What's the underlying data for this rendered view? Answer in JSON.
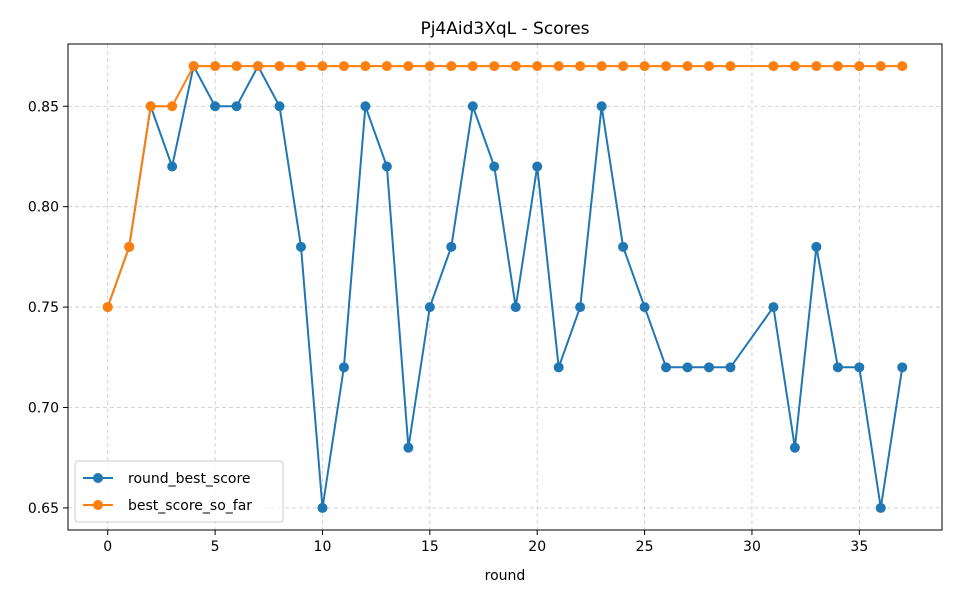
{
  "chart_data": {
    "type": "line",
    "title": "Pj4Aid3XqL - Scores",
    "xlabel": "round",
    "ylabel": "",
    "xlim": [
      -1.85,
      38.85
    ],
    "ylim": [
      0.639,
      0.881
    ],
    "xticks": [
      0,
      5,
      10,
      15,
      20,
      25,
      30,
      35
    ],
    "yticks": [
      0.65,
      0.7,
      0.75,
      0.8,
      0.85
    ],
    "ytick_labels": [
      "0.65",
      "0.70",
      "0.75",
      "0.80",
      "0.85"
    ],
    "grid": true,
    "legend_position": "lower-left",
    "series": [
      {
        "name": "round_best_score",
        "color": "#1f77b4",
        "x": [
          0,
          1,
          2,
          3,
          4,
          5,
          6,
          7,
          8,
          9,
          10,
          11,
          12,
          13,
          14,
          15,
          16,
          17,
          18,
          19,
          20,
          21,
          22,
          23,
          24,
          25,
          26,
          27,
          28,
          29,
          31,
          32,
          33,
          34,
          35,
          36,
          37
        ],
        "values": [
          0.75,
          0.78,
          0.85,
          0.82,
          0.87,
          0.85,
          0.85,
          0.87,
          0.85,
          0.78,
          0.65,
          0.72,
          0.85,
          0.82,
          0.68,
          0.75,
          0.78,
          0.85,
          0.82,
          0.75,
          0.82,
          0.72,
          0.75,
          0.85,
          0.78,
          0.75,
          0.72,
          0.72,
          0.72,
          0.72,
          0.75,
          0.68,
          0.78,
          0.72,
          0.72,
          0.65,
          0.72
        ]
      },
      {
        "name": "best_score_so_far",
        "color": "#ff7f0e",
        "x": [
          0,
          1,
          2,
          3,
          4,
          5,
          6,
          7,
          8,
          9,
          10,
          11,
          12,
          13,
          14,
          15,
          16,
          17,
          18,
          19,
          20,
          21,
          22,
          23,
          24,
          25,
          26,
          27,
          28,
          29,
          31,
          32,
          33,
          34,
          35,
          36,
          37
        ],
        "values": [
          0.75,
          0.78,
          0.85,
          0.85,
          0.87,
          0.87,
          0.87,
          0.87,
          0.87,
          0.87,
          0.87,
          0.87,
          0.87,
          0.87,
          0.87,
          0.87,
          0.87,
          0.87,
          0.87,
          0.87,
          0.87,
          0.87,
          0.87,
          0.87,
          0.87,
          0.87,
          0.87,
          0.87,
          0.87,
          0.87,
          0.87,
          0.87,
          0.87,
          0.87,
          0.87,
          0.87,
          0.87
        ]
      }
    ]
  }
}
